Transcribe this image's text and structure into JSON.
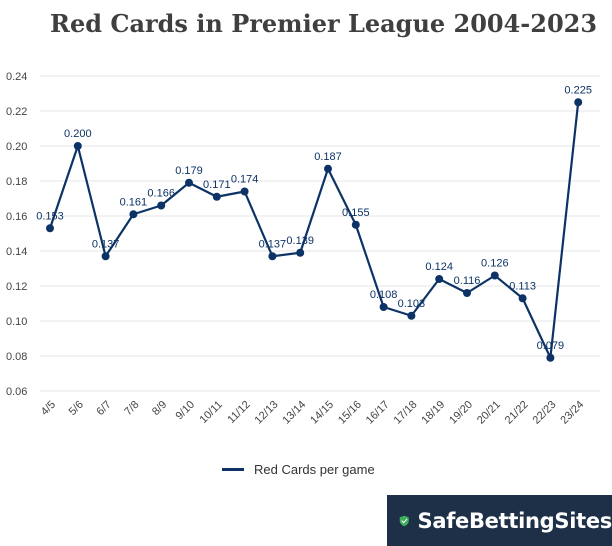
{
  "chart_data": {
    "type": "line",
    "title": "Red Cards in Premier League 2004-2023",
    "categories": [
      "4/5",
      "5/6",
      "6/7",
      "7/8",
      "8/9",
      "9/10",
      "10/11",
      "11/12",
      "12/13",
      "13/14",
      "14/15",
      "15/16",
      "16/17",
      "17/18",
      "18/19",
      "19/20",
      "20/21",
      "21/22",
      "22/23",
      "23/24"
    ],
    "series": [
      {
        "name": "Red Cards per game",
        "values": [
          0.153,
          0.2,
          0.137,
          0.161,
          0.166,
          0.179,
          0.171,
          0.174,
          0.137,
          0.139,
          0.187,
          0.155,
          0.108,
          0.103,
          0.124,
          0.116,
          0.126,
          0.113,
          0.079,
          0.225
        ],
        "labels": [
          "0.153",
          "0.200",
          "0.137",
          "0.161",
          "0.166",
          "0.179",
          "0.171",
          "0.174",
          "0.137",
          "0.139",
          "0.187",
          "0.155",
          "0.108",
          "0.103",
          "0.124",
          "0.116",
          "0.126",
          "0.113",
          "0.079",
          "0.225"
        ]
      }
    ],
    "yticks": [
      "0.06",
      "0.08",
      "0.10",
      "0.12",
      "0.14",
      "0.16",
      "0.18",
      "0.20",
      "0.22",
      "0.24"
    ],
    "ylim": [
      0.06,
      0.24
    ],
    "grid": true,
    "legend_position": "bottom",
    "line_color": "#0d3366"
  },
  "brand": {
    "name": "SafeBettingSites",
    "icon": "shield-check-icon",
    "color": "#1e3047",
    "accent": "#3fae5a"
  }
}
